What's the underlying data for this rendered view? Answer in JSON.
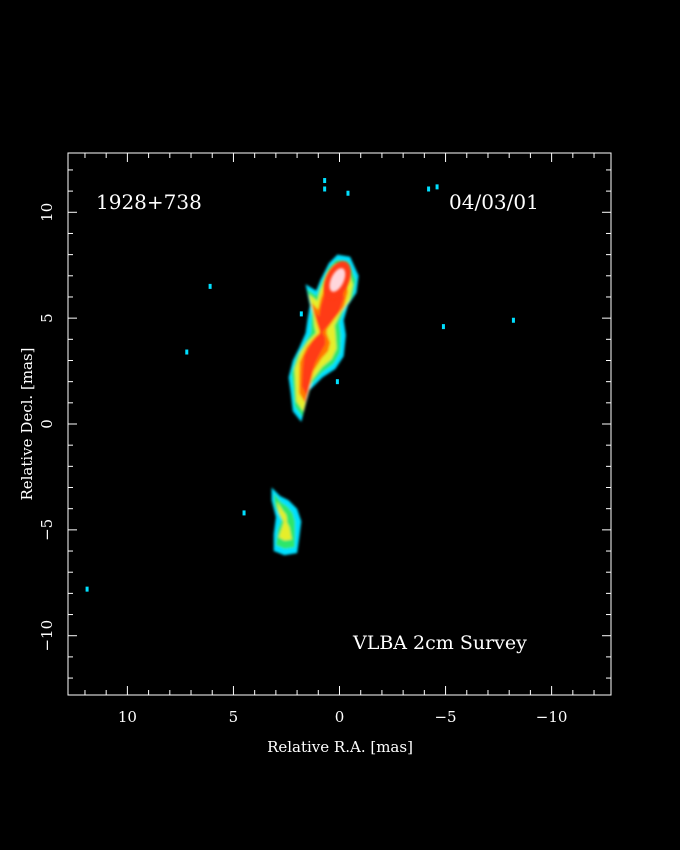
{
  "chart_data": {
    "type": "heatmap",
    "title": "",
    "source_label": "1928+738",
    "date_label": "04/03/01",
    "survey_label": "VLBA 2cm Survey",
    "xlabel": "Relative R.A. [mas]",
    "ylabel": "Relative Decl. [mas]",
    "xlim": [
      12.8,
      -12.8
    ],
    "ylim": [
      -12.8,
      12.8
    ],
    "x_ticks": [
      10,
      5,
      0,
      -5,
      -10
    ],
    "y_ticks": [
      10,
      5,
      0,
      -5,
      -10
    ],
    "x_tick_labels": [
      "10",
      "5",
      "0",
      "−5",
      "−10"
    ],
    "y_tick_labels": [
      "10",
      "5",
      "0",
      "−5",
      "−10"
    ],
    "grid": false,
    "colors": {
      "background": "#000000",
      "frame": "#ffffff",
      "cyan": "#00e0ff",
      "green": "#2ee66a",
      "yellow": "#e6ee2a",
      "orange": "#ff7a00",
      "red": "#ff3a12",
      "peak": "#ffd6dc"
    },
    "emission_regions": [
      {
        "name": "core-jet",
        "points": [
          [
            0.1,
            8.0
          ],
          [
            -0.5,
            7.9
          ],
          [
            -0.9,
            7.0
          ],
          [
            -0.8,
            6.2
          ],
          [
            -0.4,
            5.6
          ],
          [
            -0.2,
            4.9
          ],
          [
            -0.3,
            4.2
          ],
          [
            -0.2,
            3.2
          ],
          [
            0.2,
            2.6
          ],
          [
            0.8,
            2.2
          ],
          [
            1.4,
            1.6
          ],
          [
            1.6,
            0.9
          ],
          [
            1.8,
            0.1
          ],
          [
            2.2,
            0.6
          ],
          [
            2.3,
            1.5
          ],
          [
            2.4,
            2.2
          ],
          [
            2.2,
            3.0
          ],
          [
            1.9,
            3.6
          ],
          [
            1.6,
            4.3
          ],
          [
            1.5,
            5.0
          ],
          [
            1.4,
            5.6
          ],
          [
            1.6,
            6.6
          ],
          [
            1.1,
            6.3
          ],
          [
            0.9,
            6.8
          ],
          [
            0.5,
            7.6
          ]
        ],
        "levels": [
          {
            "color": "cyan",
            "offset": 0
          },
          {
            "color": "green",
            "offset": 0.25
          },
          {
            "color": "yellow",
            "offset": 0.5
          },
          {
            "color": "orange",
            "offset": 0.9
          },
          {
            "color": "red",
            "offset": 1.25
          }
        ]
      },
      {
        "name": "southern-component",
        "points": [
          [
            3.2,
            -3.0
          ],
          [
            2.8,
            -3.4
          ],
          [
            2.4,
            -3.6
          ],
          [
            2.0,
            -4.0
          ],
          [
            1.8,
            -4.6
          ],
          [
            1.9,
            -5.4
          ],
          [
            2.0,
            -6.1
          ],
          [
            2.6,
            -6.2
          ],
          [
            3.1,
            -6.0
          ],
          [
            3.1,
            -5.2
          ],
          [
            3.0,
            -4.4
          ],
          [
            3.2,
            -3.6
          ]
        ],
        "levels": [
          {
            "color": "cyan",
            "offset": 0
          },
          {
            "color": "green",
            "offset": 0.3
          },
          {
            "color": "yellow",
            "offset": 0.7
          }
        ]
      }
    ],
    "peak": {
      "x": 0.1,
      "y": 6.8
    },
    "noise_specks": [
      [
        0.7,
        11.5
      ],
      [
        0.7,
        11.1
      ],
      [
        -0.4,
        10.9
      ],
      [
        -4.2,
        11.1
      ],
      [
        -4.6,
        11.2
      ],
      [
        6.1,
        6.5
      ],
      [
        1.8,
        5.2
      ],
      [
        -4.9,
        4.6
      ],
      [
        -8.2,
        4.9
      ],
      [
        7.2,
        3.4
      ],
      [
        4.5,
        -4.2
      ],
      [
        11.9,
        -7.8
      ],
      [
        0.1,
        2.0
      ]
    ]
  }
}
